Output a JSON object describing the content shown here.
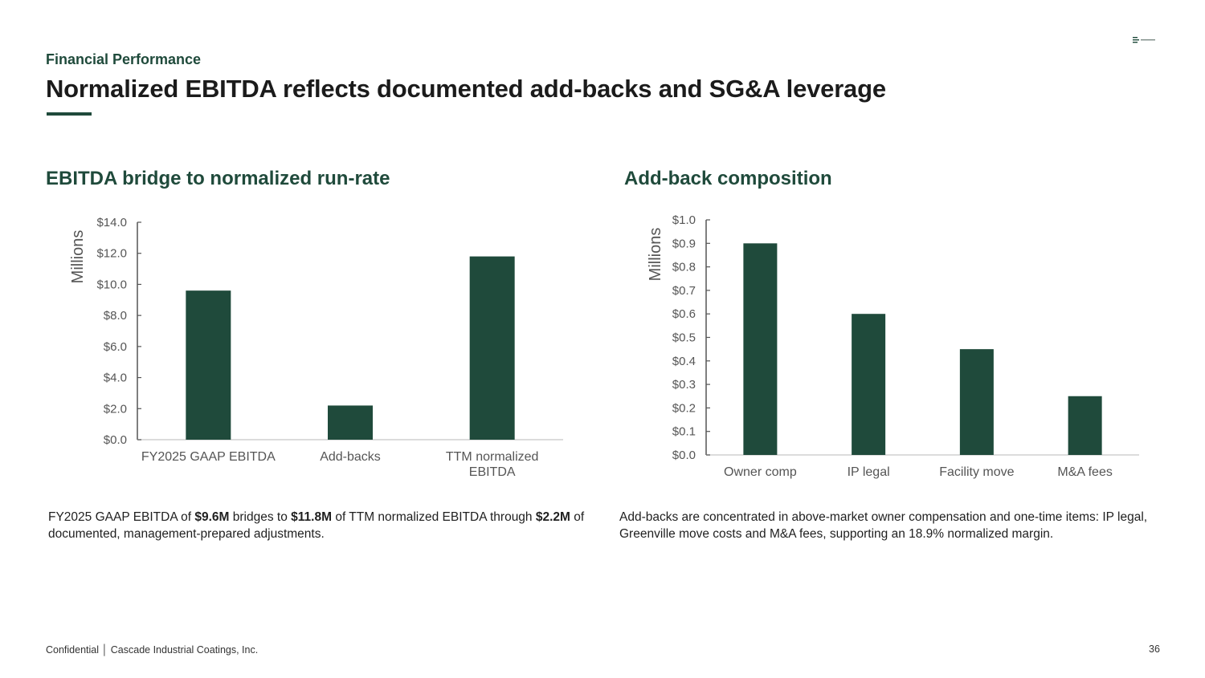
{
  "header": {
    "kicker": "Financial Performance",
    "title": "Normalized EBITDA reflects documented add-backs and SG&A leverage"
  },
  "colors": {
    "accent": "#1f4a3b",
    "bar": "#1f4a3b",
    "axis": "#555555",
    "tick_text": "#555555"
  },
  "left": {
    "section_title": "EBITDA bridge to normalized run-rate",
    "caption": {
      "p1": "FY2025 GAAP EBITDA of ",
      "b1": "$9.6M",
      "p2": " bridges to ",
      "b2": "$11.8M",
      "p3": " of TTM normalized EBITDA through ",
      "b3": "$2.2M",
      "p4": " of documented, management-prepared adjustments."
    }
  },
  "right": {
    "section_title": "Add-back composition",
    "caption": "Add-backs are concentrated in above-market owner compensation and one-time items: IP legal, Greenville move costs and M&A fees, supporting an 18.9% normalized margin."
  },
  "chart_data": [
    {
      "type": "bar",
      "categories": [
        [
          "FY2025 GAAP EBITDA"
        ],
        [
          "Add-backs"
        ],
        [
          "TTM normalized",
          "EBITDA"
        ]
      ],
      "values": [
        9.6,
        2.2,
        11.8
      ],
      "ylabel": "Millions",
      "ylim": [
        0,
        14
      ],
      "yticks": [
        "$0.0",
        "$2.0",
        "$4.0",
        "$6.0",
        "$8.0",
        "$10.0",
        "$12.0",
        "$14.0"
      ],
      "grid": false
    },
    {
      "type": "bar",
      "categories": [
        [
          "Owner comp"
        ],
        [
          "IP legal"
        ],
        [
          "Facility move"
        ],
        [
          "M&A fees"
        ]
      ],
      "values": [
        0.9,
        0.6,
        0.45,
        0.25
      ],
      "ylabel": "Millions",
      "ylim": [
        0,
        1
      ],
      "yticks": [
        "$0.0",
        "$0.1",
        "$0.2",
        "$0.3",
        "$0.4",
        "$0.5",
        "$0.6",
        "$0.7",
        "$0.8",
        "$0.9",
        "$1.0"
      ],
      "grid": false
    }
  ],
  "footer": {
    "confidential": "Confidential │ Cascade Industrial Coatings, Inc.",
    "page": "36"
  }
}
